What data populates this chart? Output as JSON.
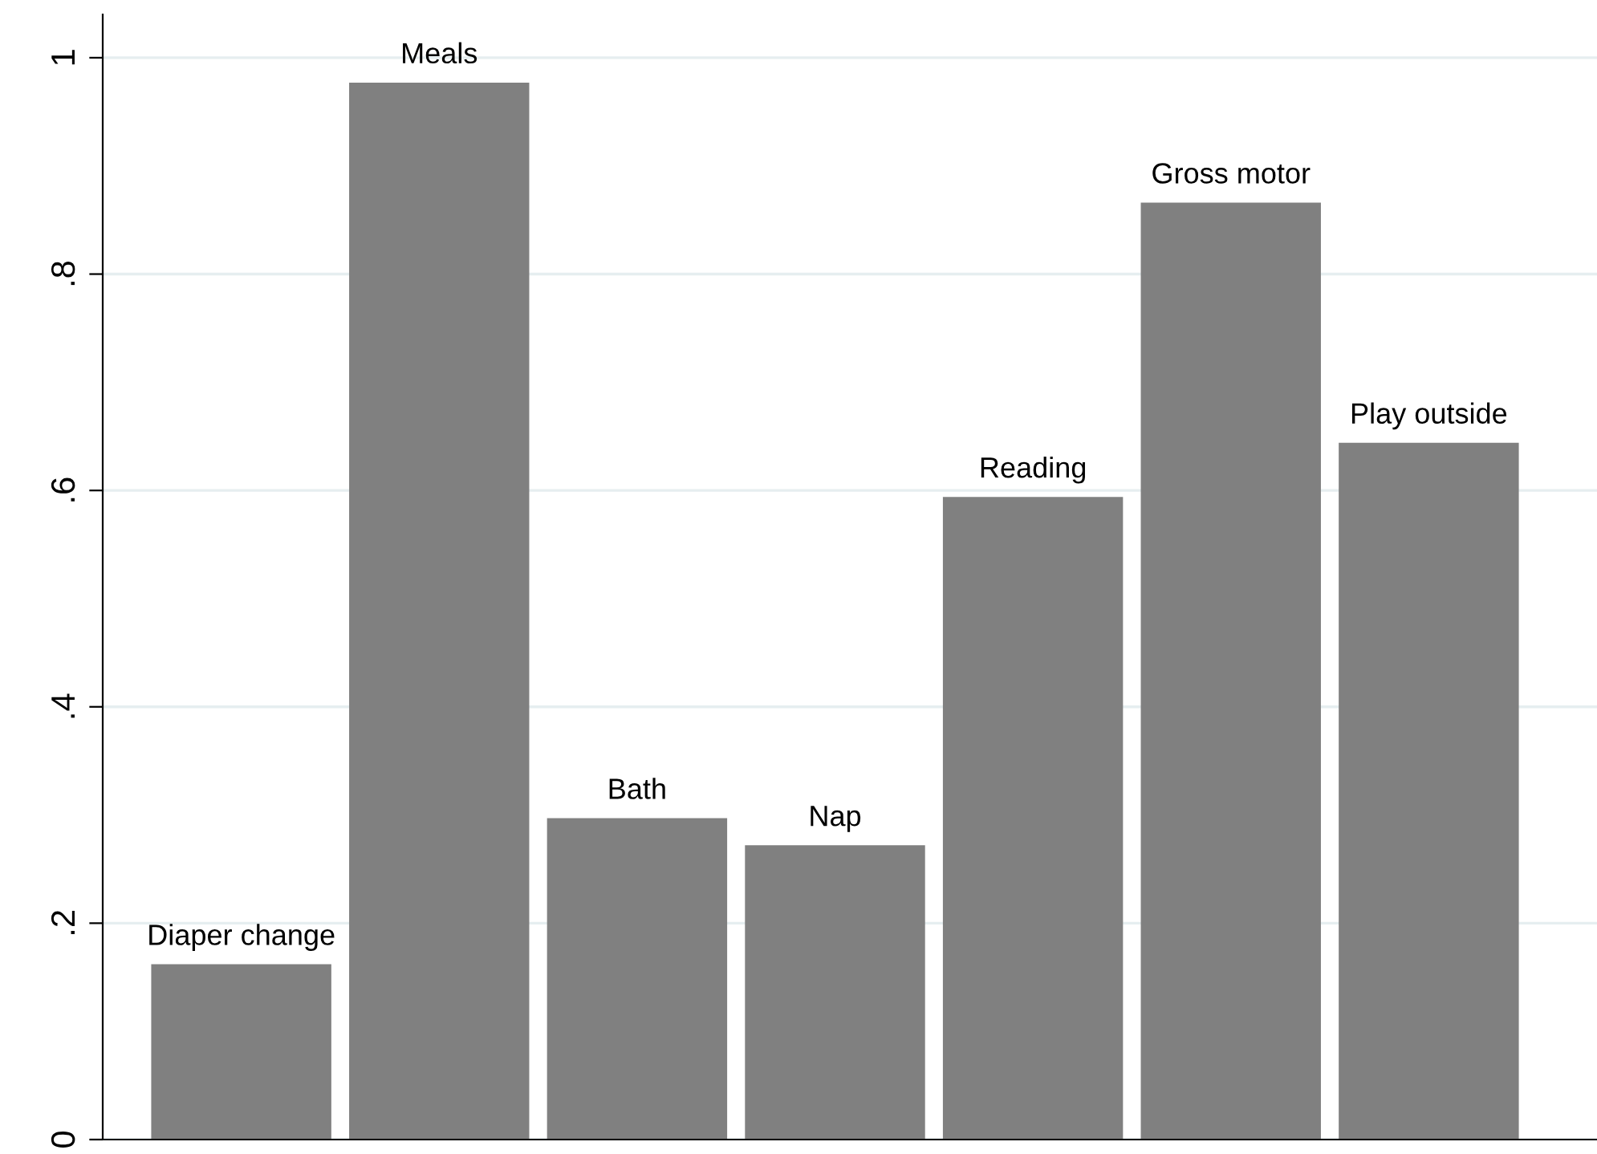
{
  "chart_data": {
    "type": "bar",
    "categories": [
      "Diaper change",
      "Meals",
      "Bath",
      "Nap",
      "Reading",
      "Gross motor",
      "Play outside"
    ],
    "values": [
      0.162,
      0.977,
      0.297,
      0.272,
      0.594,
      0.866,
      0.644
    ],
    "color": "#808080",
    "ylim": [
      0,
      1.04
    ],
    "yticks": [
      {
        "value": 0,
        "label": "0"
      },
      {
        "value": 0.2,
        "label": ".2"
      },
      {
        "value": 0.4,
        "label": ".4"
      },
      {
        "value": 0.6,
        "label": ".6"
      },
      {
        "value": 0.8,
        "label": ".8"
      },
      {
        "value": 1,
        "label": "1"
      }
    ],
    "grid": "y"
  }
}
